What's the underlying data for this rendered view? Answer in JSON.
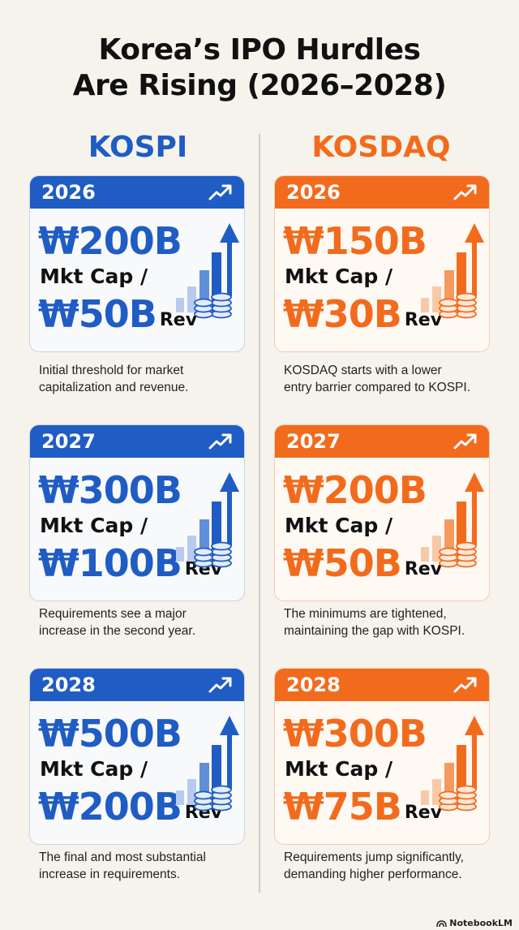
{
  "title": {
    "line1": "Korea’s IPO Hurdles",
    "line2": "Are Rising (2026–2028)"
  },
  "columns": [
    {
      "name": "KOSPI",
      "color": "#1f5cc4",
      "cards": [
        {
          "year": "2026",
          "market_cap": "₩200B",
          "mid_label": "Mkt Cap /",
          "revenue": "₩50B",
          "rev_label": "Rev",
          "description": [
            "Initial threshold for market",
            "capitalization and revenue."
          ]
        },
        {
          "year": "2027",
          "market_cap": "₩300B",
          "mid_label": "Mkt Cap /",
          "revenue": "₩100B",
          "rev_label": "Rev",
          "description": [
            "Requirements see a major",
            "increase in the second year."
          ]
        },
        {
          "year": "2028",
          "market_cap": "₩500B",
          "mid_label": "Mkt Cap /",
          "revenue": "₩200B",
          "rev_label": "Rev",
          "description": [
            "The final and most substantial",
            "increase in requirements."
          ]
        }
      ]
    },
    {
      "name": "KOSDAQ",
      "color": "#f26b1d",
      "cards": [
        {
          "year": "2026",
          "market_cap": "₩150B",
          "mid_label": "Mkt Cap /",
          "revenue": "₩30B",
          "rev_label": "Rev",
          "description": [
            "KOSDAQ starts with a lower",
            "entry barrier compared to KOSPI."
          ]
        },
        {
          "year": "2027",
          "market_cap": "₩200B",
          "mid_label": "Mkt Cap /",
          "revenue": "₩50B",
          "rev_label": "Rev",
          "description": [
            "The minimums are tightened,",
            "maintaining the gap with KOSPI."
          ]
        },
        {
          "year": "2028",
          "market_cap": "₩300B",
          "mid_label": "Mkt Cap /",
          "revenue": "₩75B",
          "rev_label": "Rev",
          "description": [
            "Requirements jump significantly,",
            "demanding higher performance."
          ]
        }
      ]
    }
  ],
  "icons": {
    "bar_icon": "trend-up-icon",
    "graphic": "growth-chart-coins-icon",
    "brand_icon": "notebooklm-logo-icon"
  },
  "brand": "NotebookLM"
}
